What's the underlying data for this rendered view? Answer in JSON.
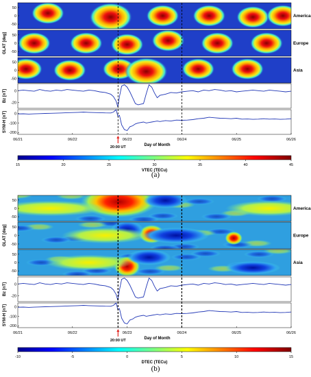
{
  "chart_data": [
    {
      "type": "heatmap",
      "caption": "(a)",
      "xlabel": "Day of Month",
      "x_ticks": [
        "06/21",
        "06/22",
        "06/23",
        "06/24",
        "06/25",
        "06/26"
      ],
      "x_range": [
        "06/21",
        "06/26"
      ],
      "event_marker": {
        "day": "06/22",
        "time": "20:00 UT",
        "label": "20:00 UT"
      },
      "dashed_lines": [
        "06/22 20:00 UT",
        "06/24"
      ],
      "heatmap_panels": [
        {
          "region": "America",
          "ylabel": "",
          "y_ticks": [
            "50",
            "0",
            "-50"
          ],
          "y_range": [
            -60,
            60
          ]
        },
        {
          "region": "Europe",
          "ylabel": "GLAT [deg]",
          "y_ticks": [
            "50",
            "0",
            "-50"
          ],
          "y_range": [
            -60,
            60
          ]
        },
        {
          "region": "Asia",
          "ylabel": "",
          "y_ticks": [
            "50",
            "0",
            "-50"
          ],
          "y_range": [
            -60,
            60
          ]
        }
      ],
      "colorbar": {
        "label": "VTEC (TECu)",
        "ticks": [
          "15",
          "20",
          "25",
          "30",
          "35",
          "40",
          "45"
        ],
        "range": [
          15,
          45
        ],
        "colormap": "jet"
      },
      "line_panels": [
        {
          "ylabel": "Bz [nT]",
          "y_ticks": [
            "0",
            "-20"
          ],
          "y_range": [
            -30,
            12
          ],
          "x": [
            0,
            0.1,
            0.2,
            0.3,
            0.4,
            0.5,
            0.6,
            0.7,
            0.8,
            0.9,
            1.0,
            1.1,
            1.2,
            1.3,
            1.4,
            1.5,
            1.6,
            1.7,
            1.75,
            1.8,
            1.83,
            1.86,
            1.9,
            1.95,
            2.0,
            2.05,
            2.1,
            2.15,
            2.2,
            2.3,
            2.35,
            2.4,
            2.45,
            2.5,
            2.55,
            2.6,
            2.7,
            2.8,
            2.9,
            3.0,
            3.1,
            3.2,
            3.3,
            3.4,
            3.5,
            3.6,
            3.7,
            3.8,
            3.9,
            4.0,
            4.1,
            4.2,
            4.3,
            4.4,
            4.5,
            4.6,
            4.7,
            4.8,
            4.9,
            5.0
          ],
          "y": [
            0,
            1,
            0,
            -1,
            2,
            0,
            -1,
            1,
            0,
            2,
            1,
            0,
            -1,
            1,
            0,
            -2,
            -3,
            -6,
            -10,
            -18,
            -28,
            -10,
            8,
            10,
            6,
            -2,
            -12,
            -22,
            -24,
            -22,
            -5,
            10,
            6,
            -4,
            -12,
            -8,
            -6,
            -3,
            -4,
            -2,
            -1,
            0,
            -2,
            1,
            0,
            2,
            1,
            -1,
            0,
            -2,
            -1,
            0,
            1,
            0,
            -1,
            1,
            0,
            -1,
            -2,
            -1
          ]
        },
        {
          "ylabel": "SYM-H [nT]",
          "y_ticks": [
            "0",
            "-100",
            "-200"
          ],
          "y_range": [
            -220,
            40
          ],
          "x": [
            0,
            0.1,
            0.2,
            0.3,
            0.4,
            0.5,
            0.6,
            0.7,
            0.8,
            0.9,
            1.0,
            1.1,
            1.2,
            1.3,
            1.4,
            1.5,
            1.6,
            1.7,
            1.75,
            1.8,
            1.83,
            1.86,
            1.9,
            1.95,
            2.0,
            2.05,
            2.1,
            2.15,
            2.2,
            2.3,
            2.35,
            2.4,
            2.45,
            2.5,
            2.55,
            2.6,
            2.7,
            2.8,
            2.9,
            3.0,
            3.1,
            3.2,
            3.3,
            3.4,
            3.5,
            3.6,
            3.7,
            3.8,
            3.9,
            4.0,
            4.1,
            4.2,
            4.3,
            4.4,
            4.5,
            4.6,
            4.7,
            4.8,
            4.9,
            5.0
          ],
          "y": [
            -5,
            -3,
            -6,
            -4,
            -2,
            0,
            2,
            3,
            5,
            8,
            10,
            12,
            15,
            12,
            10,
            8,
            6,
            5,
            15,
            60,
            -30,
            -20,
            -120,
            -170,
            -180,
            -140,
            -130,
            -110,
            -100,
            -90,
            -100,
            -95,
            -90,
            -85,
            -80,
            -85,
            -75,
            -80,
            -70,
            -72,
            -70,
            -65,
            -55,
            -50,
            -40,
            -45,
            -50,
            -52,
            -55,
            -50,
            -60,
            -58,
            -62,
            -60,
            -55,
            -60,
            -58,
            -62,
            -60,
            -55
          ]
        }
      ]
    },
    {
      "type": "heatmap",
      "caption": "(b)",
      "xlabel": "Day of Month",
      "x_ticks": [
        "06/21",
        "06/22",
        "06/23",
        "06/24",
        "06/25",
        "06/26"
      ],
      "x_range": [
        "06/21",
        "06/26"
      ],
      "event_marker": {
        "day": "06/22",
        "time": "20:00 UT",
        "label": "20:00 UT"
      },
      "dashed_lines": [
        "06/22 20:00 UT",
        "06/24"
      ],
      "heatmap_panels": [
        {
          "region": "America",
          "ylabel": "",
          "y_ticks": [
            "50",
            "0",
            "-50"
          ],
          "y_range": [
            -60,
            60
          ]
        },
        {
          "region": "Europe",
          "ylabel": "GLAT [deg]",
          "y_ticks": [
            "50",
            "0",
            "-50"
          ],
          "y_range": [
            -60,
            60
          ]
        },
        {
          "region": "Asia",
          "ylabel": "",
          "y_ticks": [
            "50",
            "0",
            "-50"
          ],
          "y_range": [
            -60,
            60
          ]
        }
      ],
      "colorbar": {
        "label": "DTEC (TECu)",
        "ticks": [
          "-10",
          "-5",
          "0",
          "5",
          "10",
          "15"
        ],
        "range": [
          -10,
          15
        ],
        "colormap": "jet"
      },
      "line_panels": [
        {
          "ylabel": "Bz [nT]",
          "y_ticks": [
            "0",
            "-20"
          ],
          "y_range": [
            -30,
            12
          ],
          "x": [
            0,
            0.1,
            0.2,
            0.3,
            0.4,
            0.5,
            0.6,
            0.7,
            0.8,
            0.9,
            1.0,
            1.1,
            1.2,
            1.3,
            1.4,
            1.5,
            1.6,
            1.7,
            1.75,
            1.8,
            1.83,
            1.86,
            1.9,
            1.95,
            2.0,
            2.05,
            2.1,
            2.15,
            2.2,
            2.3,
            2.35,
            2.4,
            2.45,
            2.5,
            2.55,
            2.6,
            2.7,
            2.8,
            2.9,
            3.0,
            3.1,
            3.2,
            3.3,
            3.4,
            3.5,
            3.6,
            3.7,
            3.8,
            3.9,
            4.0,
            4.1,
            4.2,
            4.3,
            4.4,
            4.5,
            4.6,
            4.7,
            4.8,
            4.9,
            5.0
          ],
          "y": [
            0,
            1,
            0,
            -1,
            2,
            0,
            -1,
            1,
            0,
            2,
            1,
            0,
            -1,
            1,
            0,
            -2,
            -3,
            -6,
            -10,
            -18,
            -28,
            -10,
            8,
            10,
            6,
            -2,
            -12,
            -22,
            -24,
            -22,
            -5,
            10,
            6,
            -4,
            -12,
            -8,
            -6,
            -3,
            -4,
            -2,
            -1,
            0,
            -2,
            1,
            0,
            2,
            1,
            -1,
            0,
            -2,
            -1,
            0,
            1,
            0,
            -1,
            1,
            0,
            -1,
            -2,
            -1
          ]
        },
        {
          "ylabel": "SYM-H [nT]",
          "y_ticks": [
            "0",
            "-100",
            "-200"
          ],
          "y_range": [
            -220,
            40
          ],
          "x": [
            0,
            0.1,
            0.2,
            0.3,
            0.4,
            0.5,
            0.6,
            0.7,
            0.8,
            0.9,
            1.0,
            1.1,
            1.2,
            1.3,
            1.4,
            1.5,
            1.6,
            1.7,
            1.75,
            1.8,
            1.83,
            1.86,
            1.9,
            1.95,
            2.0,
            2.05,
            2.1,
            2.15,
            2.2,
            2.3,
            2.35,
            2.4,
            2.45,
            2.5,
            2.55,
            2.6,
            2.7,
            2.8,
            2.9,
            3.0,
            3.1,
            3.2,
            3.3,
            3.4,
            3.5,
            3.6,
            3.7,
            3.8,
            3.9,
            4.0,
            4.1,
            4.2,
            4.3,
            4.4,
            4.5,
            4.6,
            4.7,
            4.8,
            4.9,
            5.0
          ],
          "y": [
            -5,
            -3,
            -6,
            -4,
            -2,
            0,
            2,
            3,
            5,
            8,
            10,
            12,
            15,
            12,
            10,
            8,
            6,
            5,
            15,
            60,
            -30,
            -20,
            -120,
            -170,
            -180,
            -140,
            -130,
            -110,
            -100,
            -90,
            -100,
            -95,
            -90,
            -85,
            -80,
            -85,
            -75,
            -80,
            -70,
            -72,
            -70,
            -65,
            -55,
            -50,
            -40,
            -45,
            -50,
            -52,
            -55,
            -50,
            -60,
            -58,
            -62,
            -60,
            -55,
            -60,
            -58,
            -62,
            -60,
            -55
          ]
        }
      ]
    }
  ],
  "colors": {
    "line": "#1f35b5",
    "event_marker": "#e0201b",
    "background_a": "#1f3fc8",
    "background_b": "#2f9fe0"
  }
}
